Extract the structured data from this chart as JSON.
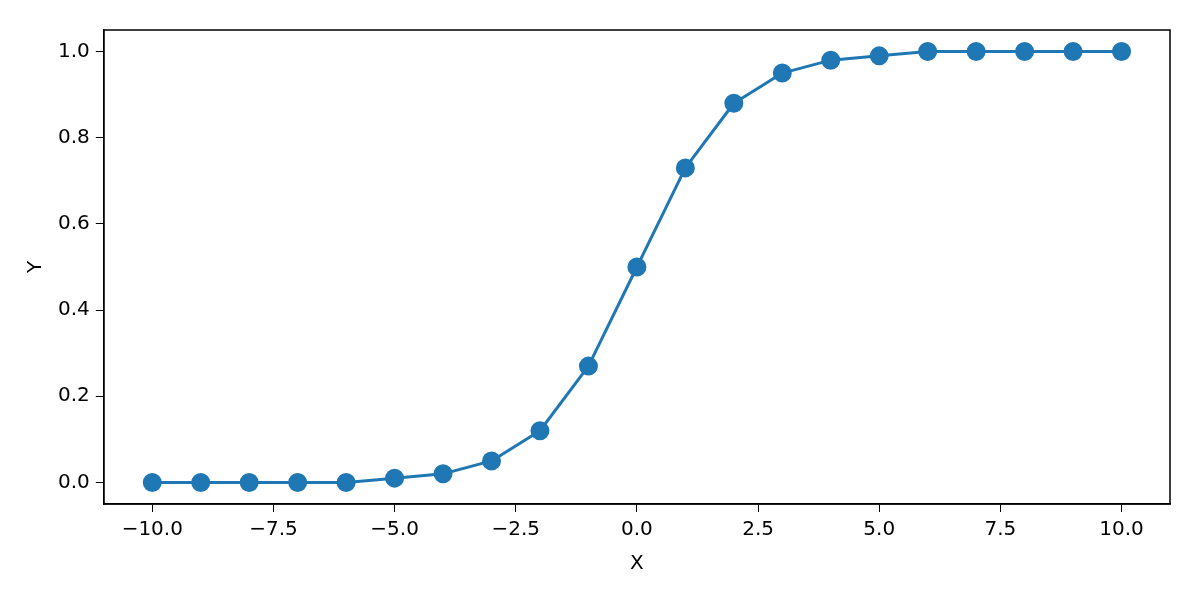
{
  "chart_data": {
    "type": "line",
    "xlabel": "X",
    "ylabel": "Y",
    "x": [
      -10,
      -9,
      -8,
      -7,
      -6,
      -5,
      -4,
      -3,
      -2,
      -1,
      0,
      1,
      2,
      3,
      4,
      5,
      6,
      7,
      8,
      9,
      10
    ],
    "series": [
      {
        "color": "#1f77b4",
        "values": [
          0,
          0,
          0,
          0,
          0,
          0.01,
          0.02,
          0.05,
          0.12,
          0.27,
          0.5,
          0.73,
          0.88,
          0.95,
          0.98,
          0.99,
          1.0,
          1.0,
          1.0,
          1.0,
          1.0
        ]
      }
    ],
    "xlim": [
      -11,
      11
    ],
    "xticks": [
      {
        "value": -10,
        "label": "−10.0"
      },
      {
        "value": -7.5,
        "label": "−7.5"
      },
      {
        "value": -5,
        "label": "−5.0"
      },
      {
        "value": -2.5,
        "label": "−2.5"
      },
      {
        "value": 0,
        "label": "0.0"
      },
      {
        "value": 2.5,
        "label": "2.5"
      },
      {
        "value": 5,
        "label": "5.0"
      },
      {
        "value": 7.5,
        "label": "7.5"
      },
      {
        "value": 10,
        "label": "10.0"
      }
    ],
    "ylim": [
      -0.05,
      1.05
    ],
    "yticks": [
      {
        "value": 0,
        "label": "0.0"
      },
      {
        "value": 0.2,
        "label": "0.2"
      },
      {
        "value": 0.4,
        "label": "0.4"
      },
      {
        "value": 0.6,
        "label": "0.6"
      },
      {
        "value": 0.8,
        "label": "0.8"
      },
      {
        "value": 1.0,
        "label": "1.0"
      }
    ],
    "grid": false,
    "legend": false,
    "marker": "circle",
    "line_style": "solid"
  }
}
